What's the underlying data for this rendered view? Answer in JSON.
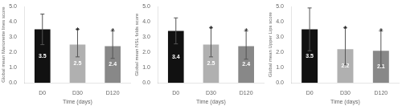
{
  "chart_data": [
    {
      "type": "bar",
      "xlabel": "Time (days)",
      "ylabel": "Global mean Marionette lines score",
      "categories": [
        "D0",
        "D30",
        "D120"
      ],
      "values": [
        3.5,
        2.5,
        2.4
      ],
      "colors": [
        "#111111",
        "#b0b0b0",
        "#888888"
      ],
      "data_labels": true,
      "error_bars": {
        "upper": [
          1.0,
          1.0,
          1.0
        ],
        "lower": [
          1.0,
          0.8,
          0.8
        ],
        "color": "#555555"
      },
      "annotations": [
        {
          "category": "D30",
          "text": "*"
        },
        {
          "category": "D120",
          "text": "*"
        }
      ],
      "ylim": [
        0.0,
        5.0
      ],
      "yticks": [
        {
          "value": 0,
          "label": "0.0"
        },
        {
          "value": 1,
          "label": "1.0"
        },
        {
          "value": 2,
          "label": "2.0"
        },
        {
          "value": 3,
          "label": "3.0"
        },
        {
          "value": 4,
          "label": "4.0"
        },
        {
          "value": 5,
          "label": "5.0"
        }
      ],
      "grid": false
    },
    {
      "type": "bar",
      "xlabel": "Time (days)",
      "ylabel": "Global mean NSL folds score",
      "categories": [
        "D0",
        "D30",
        "D120"
      ],
      "values": [
        3.4,
        2.5,
        2.4
      ],
      "colors": [
        "#111111",
        "#b0b0b0",
        "#888888"
      ],
      "data_labels": true,
      "error_bars": {
        "upper": [
          0.85,
          1.1,
          1.0
        ],
        "lower": [
          0.85,
          0.8,
          0.85
        ],
        "color": "#555555"
      },
      "annotations": [
        {
          "category": "D30",
          "text": "*"
        },
        {
          "category": "D120",
          "text": "*"
        }
      ],
      "ylim": [
        0.0,
        5.0
      ],
      "yticks": [
        {
          "value": 0,
          "label": "0.0"
        },
        {
          "value": 1,
          "label": "1.0"
        },
        {
          "value": 2,
          "label": "2.0"
        },
        {
          "value": 3,
          "label": "3.0"
        },
        {
          "value": 4,
          "label": "4.0"
        },
        {
          "value": 5,
          "label": "5.0"
        }
      ],
      "grid": false
    },
    {
      "type": "bar",
      "xlabel": "Time (days)",
      "ylabel": "Global mean Upper Lips score",
      "categories": [
        "D0",
        "D30",
        "D120"
      ],
      "values": [
        3.5,
        2.2,
        2.1
      ],
      "colors": [
        "#111111",
        "#b0b0b0",
        "#888888"
      ],
      "data_labels": true,
      "error_bars": {
        "upper": [
          1.4,
          1.4,
          1.3
        ],
        "lower": [
          1.4,
          1.0,
          1.0
        ],
        "color": "#555555"
      },
      "annotations": [
        {
          "category": "D30",
          "text": "*"
        },
        {
          "category": "D120",
          "text": "*"
        }
      ],
      "ylim": [
        0.0,
        5.0
      ],
      "yticks": [
        {
          "value": 0,
          "label": "0.0"
        },
        {
          "value": 1,
          "label": "1.0"
        },
        {
          "value": 2,
          "label": "2.0"
        },
        {
          "value": 3,
          "label": "3.0"
        },
        {
          "value": 4,
          "label": "4.0"
        },
        {
          "value": 5,
          "label": "5.0"
        }
      ],
      "grid": false
    }
  ]
}
